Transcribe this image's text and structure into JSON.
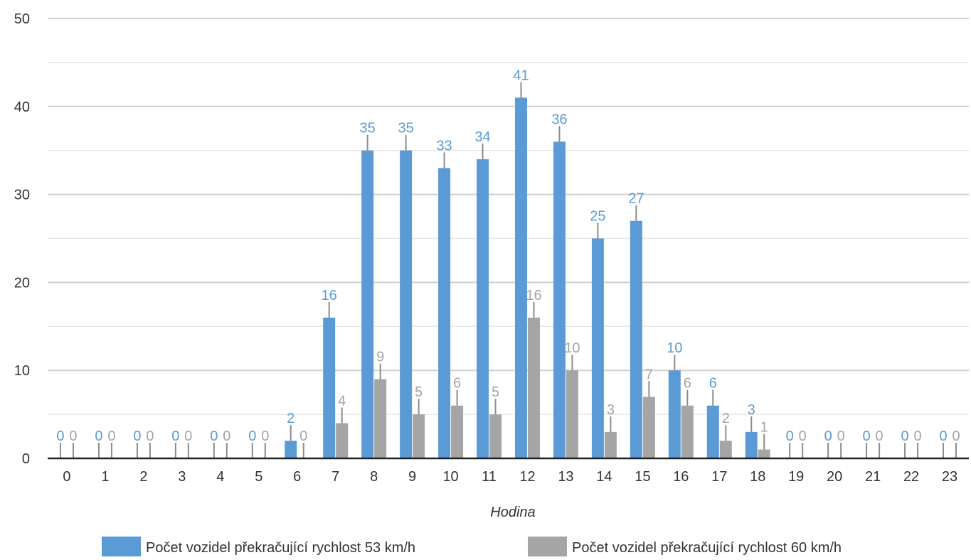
{
  "chart_data": {
    "type": "bar",
    "title": "",
    "xlabel": "Hodina",
    "ylabel": "",
    "categories": [
      "0",
      "1",
      "2",
      "3",
      "4",
      "5",
      "6",
      "7",
      "8",
      "9",
      "10",
      "11",
      "12",
      "13",
      "14",
      "15",
      "16",
      "17",
      "18",
      "19",
      "20",
      "21",
      "22",
      "23"
    ],
    "ylim": [
      0,
      50
    ],
    "yticks": [
      0,
      10,
      20,
      30,
      40,
      50
    ],
    "grid": true,
    "legend_position": "bottom",
    "series": [
      {
        "name": "Počet vozidel překračující rychlost 53 km/h",
        "color": "#5b9bd5",
        "values": [
          0,
          0,
          0,
          0,
          0,
          0,
          2,
          16,
          35,
          35,
          33,
          34,
          41,
          36,
          25,
          27,
          10,
          6,
          3,
          0,
          0,
          0,
          0,
          0
        ]
      },
      {
        "name": "Počet vozidel překračující rychlost 60 km/h",
        "color": "#a5a5a5",
        "values": [
          0,
          0,
          0,
          0,
          0,
          0,
          0,
          4,
          9,
          5,
          6,
          5,
          16,
          10,
          3,
          7,
          6,
          2,
          1,
          0,
          0,
          0,
          0,
          0
        ]
      }
    ]
  }
}
